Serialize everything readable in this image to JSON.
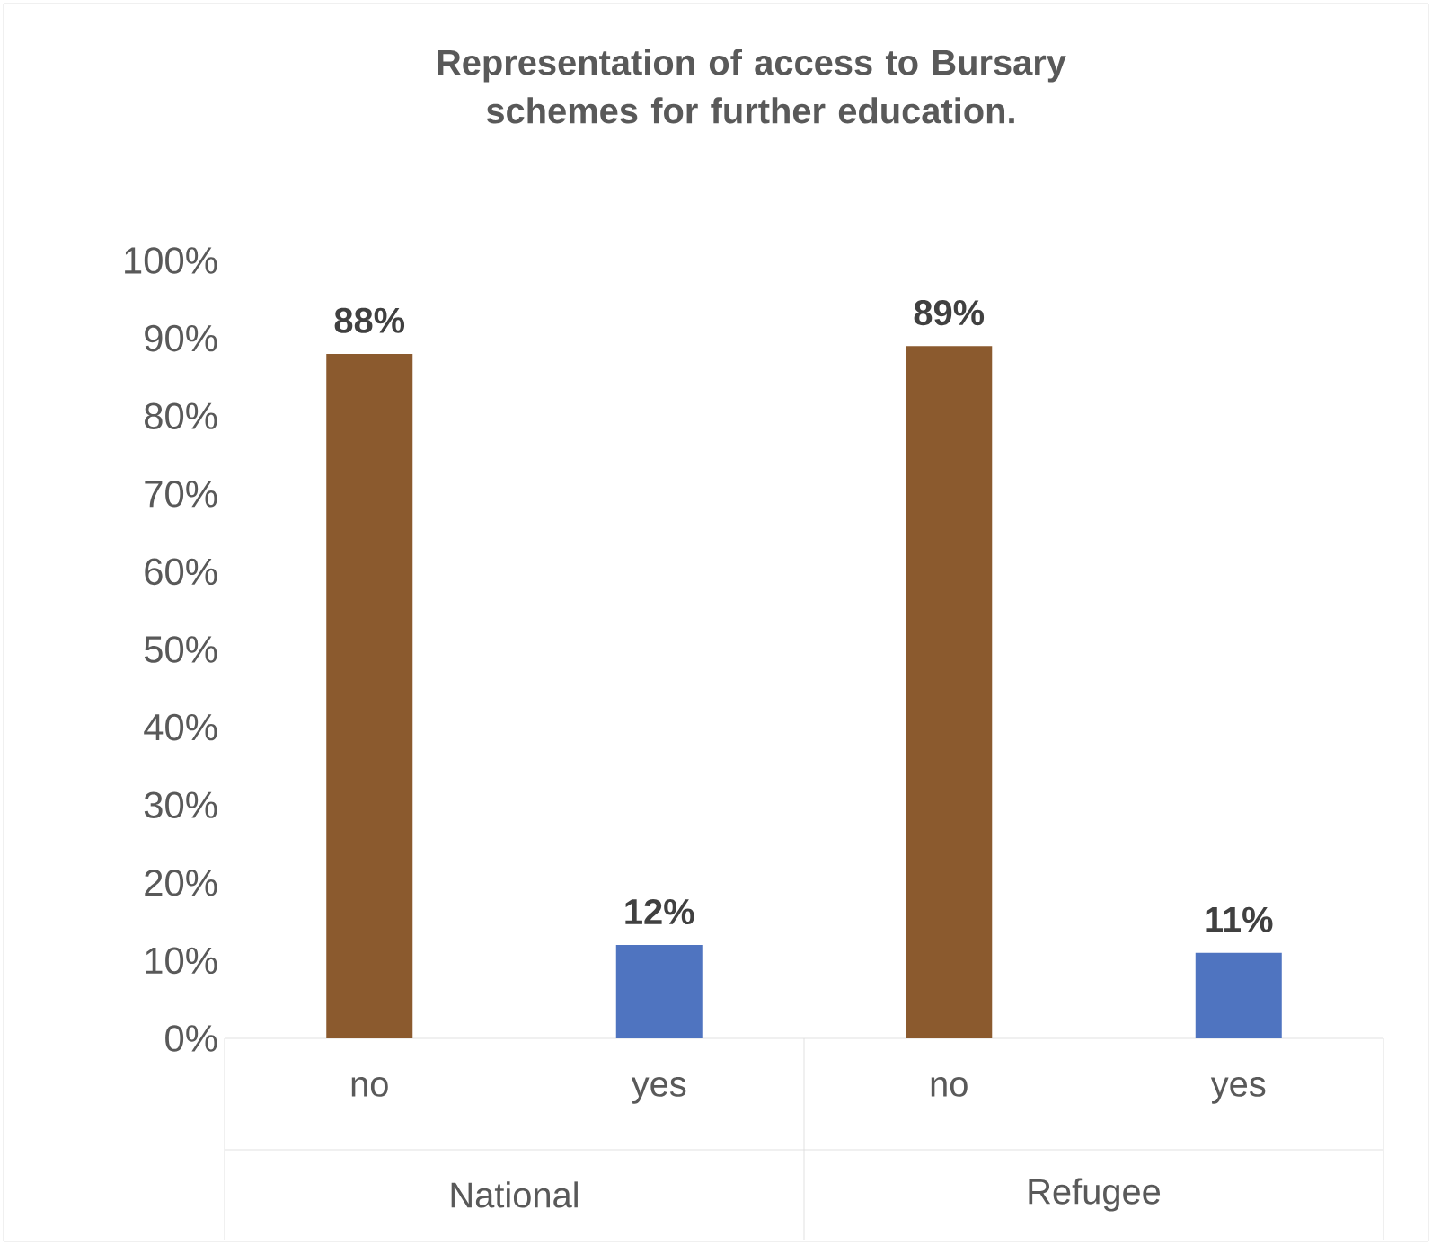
{
  "chart_data": {
    "type": "bar",
    "title": "Representation of access to Bursary schemes for further education.",
    "categories": [
      "no",
      "yes",
      "no",
      "yes"
    ],
    "values": [
      88,
      12,
      89,
      11
    ],
    "colors": [
      "#8b5a2e",
      "#4f74c0",
      "#8b5a2e",
      "#4f74c0"
    ],
    "value_labels": [
      "88%",
      "12%",
      "89%",
      "11%"
    ],
    "ylim": [
      0,
      100
    ],
    "yticks": [
      {
        "value": 0,
        "label": "0%"
      },
      {
        "value": 10,
        "label": "10%"
      },
      {
        "value": 20,
        "label": "20%"
      },
      {
        "value": 30,
        "label": "30%"
      },
      {
        "value": 40,
        "label": "40%"
      },
      {
        "value": 50,
        "label": "50%"
      },
      {
        "value": 60,
        "label": "60%"
      },
      {
        "value": 70,
        "label": "70%"
      },
      {
        "value": 80,
        "label": "80%"
      },
      {
        "value": 90,
        "label": "90%"
      },
      {
        "value": 100,
        "label": "100%"
      }
    ],
    "annotations": [
      "National",
      "Refugee"
    ]
  }
}
